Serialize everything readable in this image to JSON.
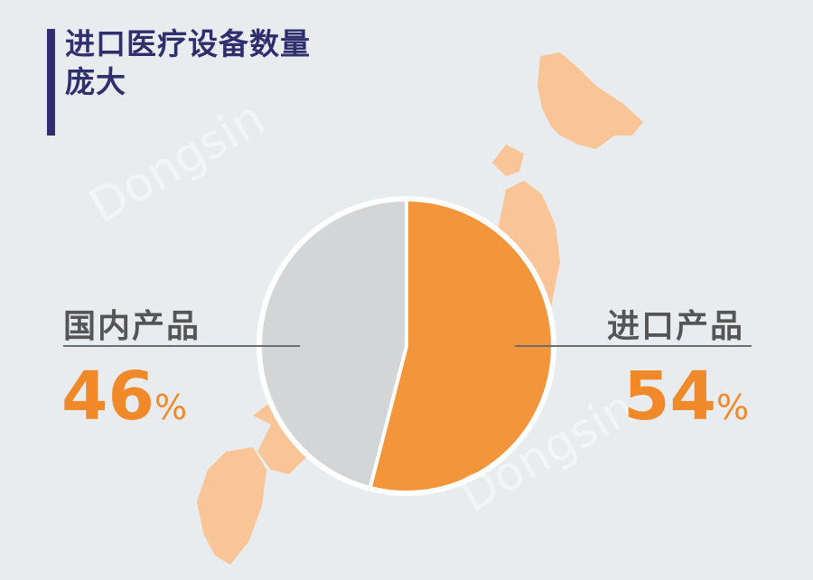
{
  "title": "进口医疗设备数量庞大",
  "watermark": "Dongsin",
  "chart_data": {
    "type": "pie",
    "title": "进口医疗设备数量庞大",
    "slices": [
      {
        "label": "进口产品",
        "value": 54,
        "display": "54",
        "color": "#f28a26"
      },
      {
        "label": "国内产品",
        "value": 46,
        "display": "46",
        "color": "#cfd0d3"
      }
    ],
    "unit": "%",
    "start": "top",
    "direction": "clockwise",
    "background_map": "Japan",
    "map_color": "#f9c597"
  }
}
